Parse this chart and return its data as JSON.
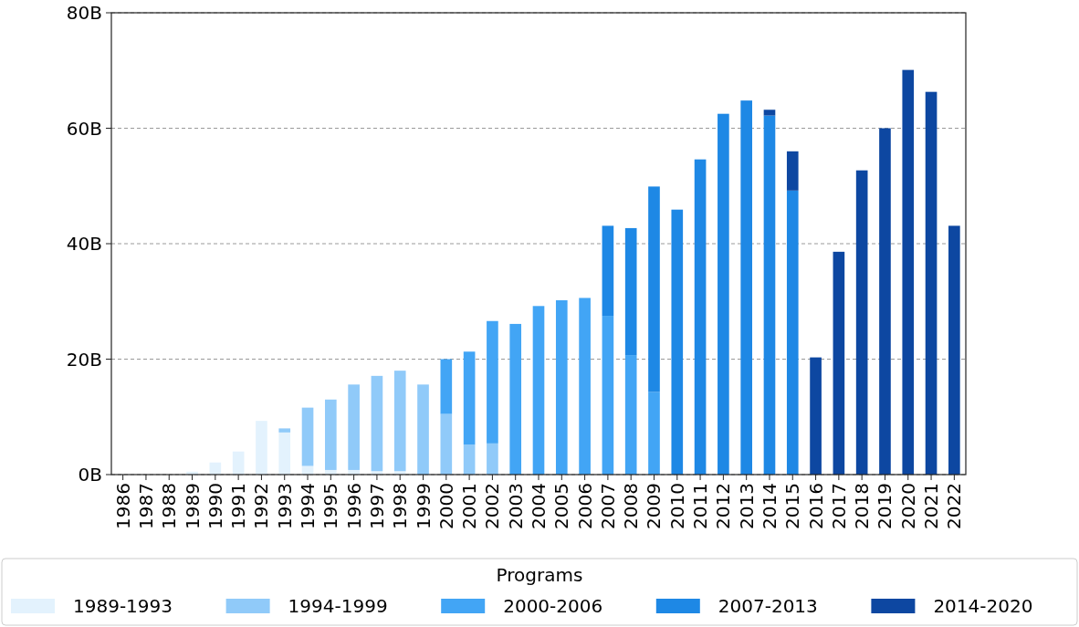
{
  "chart_data": {
    "type": "bar",
    "stacked": true,
    "legend_title": "Programs",
    "legend": "bottom",
    "grid": "y",
    "categories": [
      "1986",
      "1987",
      "1988",
      "1989",
      "1990",
      "1991",
      "1992",
      "1993",
      "1994",
      "1995",
      "1996",
      "1997",
      "1998",
      "1999",
      "2000",
      "2001",
      "2002",
      "2003",
      "2004",
      "2005",
      "2006",
      "2007",
      "2008",
      "2009",
      "2010",
      "2011",
      "2012",
      "2013",
      "2014",
      "2015",
      "2016",
      "2017",
      "2018",
      "2019",
      "2020",
      "2021",
      "2022"
    ],
    "ylim": [
      0,
      80
    ],
    "yticks": [
      {
        "value": 0,
        "label": "0B"
      },
      {
        "value": 20,
        "label": "20B"
      },
      {
        "value": 40,
        "label": "40B"
      },
      {
        "value": 60,
        "label": "60B"
      },
      {
        "value": 80,
        "label": "80B"
      }
    ],
    "series": [
      {
        "name": "1989-1993",
        "color": "#e3f2fd",
        "values": [
          0,
          0,
          0,
          0.5,
          2.1,
          4,
          9.3,
          7.3,
          1.5,
          0.8,
          0.8,
          0.6,
          0.6,
          0,
          0,
          0,
          0,
          0,
          0,
          0,
          0,
          0,
          0,
          0,
          0,
          0,
          0,
          0,
          0,
          0,
          0,
          0,
          0,
          0,
          0,
          0,
          0
        ]
      },
      {
        "name": "1994-1999",
        "color": "#90caf9",
        "values": [
          0,
          0,
          0,
          0,
          0,
          0,
          0,
          0.7,
          10.1,
          12.2,
          14.8,
          16.5,
          17.4,
          15.6,
          10.5,
          5.2,
          5.4,
          0,
          0,
          0,
          0,
          0,
          0,
          0,
          0,
          0,
          0,
          0,
          0,
          0,
          0,
          0,
          0,
          0,
          0,
          0,
          0
        ]
      },
      {
        "name": "2000-2006",
        "color": "#42a5f5",
        "values": [
          0,
          0,
          0,
          0,
          0,
          0,
          0,
          0,
          0,
          0,
          0,
          0,
          0,
          0,
          9.5,
          16.1,
          21.2,
          26.1,
          29.2,
          30.2,
          30.6,
          27.5,
          20.7,
          14.3,
          0,
          0,
          0,
          0,
          0,
          0,
          0,
          0,
          0,
          0,
          0,
          0,
          0
        ]
      },
      {
        "name": "2007-2013",
        "color": "#1e88e5",
        "values": [
          0,
          0,
          0,
          0,
          0,
          0,
          0,
          0,
          0,
          0,
          0,
          0,
          0,
          0,
          0,
          0,
          0,
          0,
          0,
          0,
          0,
          15.6,
          22,
          35.6,
          45.9,
          54.6,
          62.5,
          64.8,
          62.2,
          49.2,
          0,
          0,
          0,
          0,
          0,
          0,
          0
        ]
      },
      {
        "name": "2014-2020",
        "color": "#0d47a1",
        "values": [
          0,
          0,
          0,
          0,
          0,
          0,
          0,
          0,
          0,
          0,
          0,
          0,
          0,
          0,
          0,
          0,
          0,
          0,
          0,
          0,
          0,
          0,
          0,
          0,
          0,
          0,
          0,
          0,
          1,
          6.8,
          20.3,
          38.6,
          52.7,
          60,
          70.1,
          66.3,
          43.1
        ]
      }
    ]
  }
}
